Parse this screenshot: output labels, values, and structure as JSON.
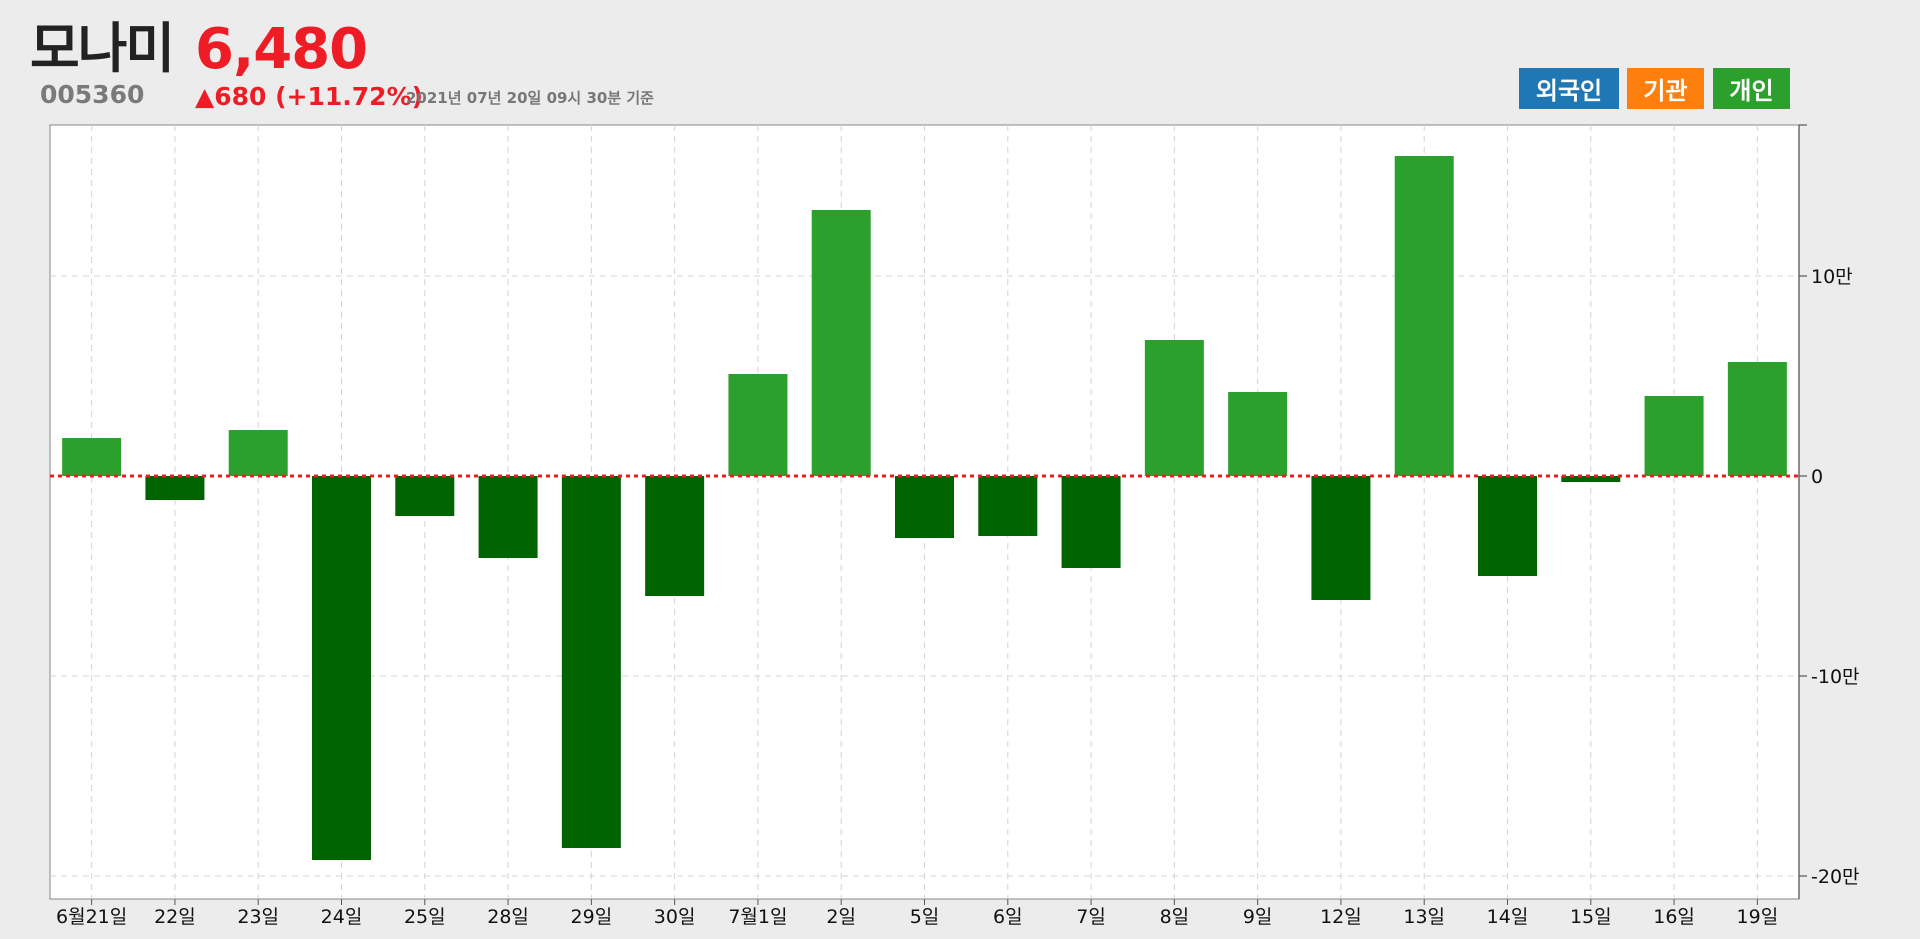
{
  "header": {
    "name": "모나미",
    "code": "005360",
    "price": "6,480",
    "change": "▲680 (+11.72%)",
    "as_of": "2021년 07년 20일 09시 30분 기준"
  },
  "legend": {
    "foreign": "외국인",
    "institution": "기관",
    "individual": "개인"
  },
  "colors": {
    "positive": "#2ca02c",
    "negative": "#006400",
    "zero_line": "#ee1c25",
    "foreign": "#1f77b4",
    "institution": "#ff7f0e",
    "individual": "#2ca02c",
    "price": "#ee1c25"
  },
  "chart_data": {
    "type": "bar",
    "categories": [
      "6월21일",
      "22일",
      "23일",
      "24일",
      "25일",
      "28일",
      "29일",
      "30일",
      "7월1일",
      "2일",
      "5일",
      "6일",
      "7일",
      "8일",
      "9일",
      "12일",
      "13일",
      "14일",
      "15일",
      "16일",
      "19일"
    ],
    "values": [
      19000,
      -12000,
      23000,
      -192000,
      -20000,
      -41000,
      -186000,
      -60000,
      51000,
      133000,
      -31000,
      -30000,
      -46000,
      68000,
      42000,
      -62000,
      160000,
      -50000,
      -3000,
      40000,
      57000
    ],
    "ylim": [
      -210000,
      175000
    ],
    "yticks": [
      {
        "value": 100000,
        "label": "10만"
      },
      {
        "value": 0,
        "label": "0"
      },
      {
        "value": -100000,
        "label": "-10만"
      },
      {
        "value": -200000,
        "label": "-20만"
      }
    ],
    "grid": true,
    "axis_side": "right",
    "zero_line": "dotted"
  }
}
